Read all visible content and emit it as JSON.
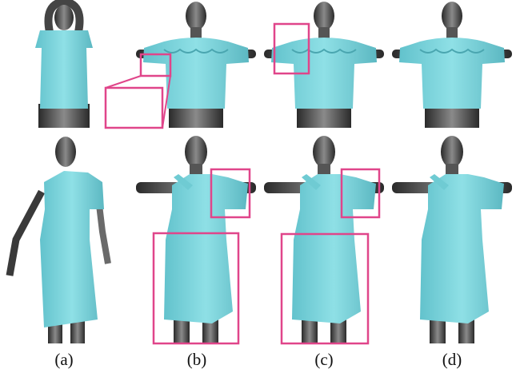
{
  "figure": {
    "labels": [
      "(a)",
      "(b)",
      "(c)",
      "(d)"
    ]
  }
}
